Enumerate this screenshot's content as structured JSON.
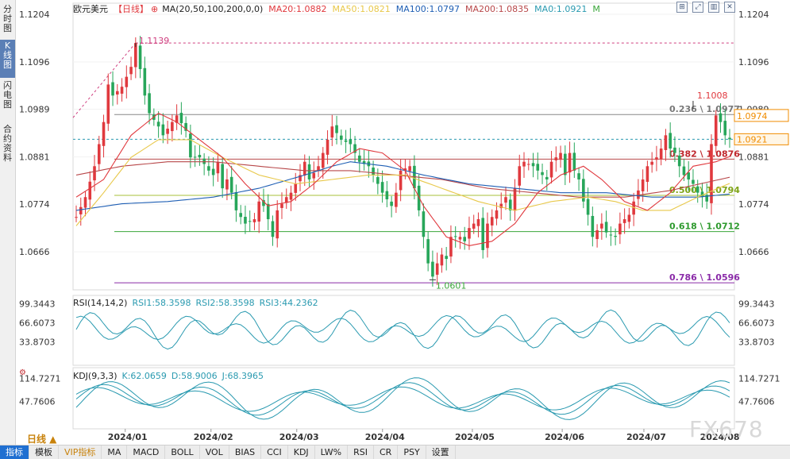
{
  "side_tabs": [
    {
      "label": "分时图",
      "active": false
    },
    {
      "label": "K线图",
      "active": true
    },
    {
      "label": "闪电图",
      "active": false
    },
    {
      "label": "合约资料",
      "active": false
    }
  ],
  "main_legend": {
    "symbol": "欧元美元",
    "period_tag": "【日线】",
    "ma_params": "MA(20,50,100,200,0,0)",
    "ma20": "MA20:1.0882",
    "ma50": "MA50:1.0821",
    "ma100": "MA100:1.0797",
    "ma200": "MA200:1.0835",
    "ma0": "MA0:1.0921",
    "m_label": "M"
  },
  "rsi_legend": {
    "name": "RSI(14,14,2)",
    "rsi1": "RSI1:58.3598",
    "rsi2": "RSI2:58.3598",
    "rsi3": "RSI3:44.2362"
  },
  "kdj_legend": {
    "name": "KDJ(9,3,3)",
    "k": "K:62.0659",
    "d": "D:58.9006",
    "j": "J:68.3965"
  },
  "colors": {
    "up": "#e0393e",
    "down": "#27a65a",
    "ma20": "#e0393e",
    "ma50": "#e8c84a",
    "ma100": "#1f5fb4",
    "ma200": "#b8484a",
    "fib_gray": "#888888",
    "fib_green": "#3aa63a",
    "fib_lime": "#a8c23a",
    "fib_purple": "#8a2aa8",
    "rsi": "#2a9ab0",
    "kdj": "#2a9ab0",
    "accent_orange": "#f08c00"
  },
  "period_selector": "日线 ▲",
  "watermark": "FX678",
  "bottom_tabs": [
    {
      "label": "指标",
      "active": true,
      "vip": false
    },
    {
      "label": "模板",
      "active": false,
      "vip": false
    },
    {
      "label": "VIP指标",
      "active": false,
      "vip": true
    },
    {
      "label": "MA",
      "active": false,
      "vip": false
    },
    {
      "label": "MACD",
      "active": false,
      "vip": false
    },
    {
      "label": "BOLL",
      "active": false,
      "vip": false
    },
    {
      "label": "VOL",
      "active": false,
      "vip": false
    },
    {
      "label": "BIAS",
      "active": false,
      "vip": false
    },
    {
      "label": "CCI",
      "active": false,
      "vip": false
    },
    {
      "label": "KDJ",
      "active": false,
      "vip": false
    },
    {
      "label": "LW%",
      "active": false,
      "vip": false
    },
    {
      "label": "RSI",
      "active": false,
      "vip": false
    },
    {
      "label": "CR",
      "active": false,
      "vip": false
    },
    {
      "label": "PSY",
      "active": false,
      "vip": false
    },
    {
      "label": "设置",
      "active": false,
      "vip": false
    }
  ],
  "chart_data": {
    "type": "candlestick",
    "symbol": "欧元美元",
    "period": "日线",
    "y_ticks": [
      "1.1204",
      "1.1096",
      "1.0989",
      "1.0881",
      "1.0774",
      "1.0666"
    ],
    "ylim": [
      1.058,
      1.1204
    ],
    "x_ticks": [
      "2024/01",
      "2024/02",
      "2024/03",
      "2024/04",
      "2024/05",
      "2024/06",
      "2024/07",
      "2024/08"
    ],
    "price_tags": [
      {
        "label": "1.0974",
        "value": 1.0974,
        "style": "outline"
      },
      {
        "label": "1.0921",
        "value": 1.0921,
        "style": "filled"
      }
    ],
    "annotations": [
      {
        "text": "1.1139",
        "value": 1.1139
      },
      {
        "text": "1.1008",
        "value": 1.1008
      },
      {
        "text": "1.0601",
        "value": 1.0601
      }
    ],
    "fibonacci": [
      {
        "label": "0.236 \\ 1.0977",
        "value": 1.0977
      },
      {
        "label": "0.382 \\ 1.0876",
        "value": 1.0876
      },
      {
        "label": "0.500 \\ 1.0794",
        "value": 1.0794
      },
      {
        "label": "0.618 \\ 1.0712",
        "value": 1.0712
      },
      {
        "label": "0.786 \\ 1.0596",
        "value": 1.0596
      }
    ],
    "price_path": [
      [
        0,
        1.0745
      ],
      [
        2,
        1.079
      ],
      [
        4,
        1.086
      ],
      [
        6,
        1.096
      ],
      [
        7,
        1.1045
      ],
      [
        8,
        1.102
      ],
      [
        10,
        1.104
      ],
      [
        12,
        1.1085
      ],
      [
        13,
        1.1139
      ],
      [
        14,
        1.108
      ],
      [
        15,
        1.102
      ],
      [
        16,
        1.098
      ],
      [
        18,
        1.095
      ],
      [
        19,
        1.093
      ],
      [
        21,
        1.096
      ],
      [
        22,
        1.0975
      ],
      [
        24,
        1.094
      ],
      [
        25,
        1.088
      ],
      [
        27,
        1.088
      ],
      [
        29,
        1.085
      ],
      [
        30,
        1.084
      ],
      [
        31,
        1.087
      ],
      [
        32,
        1.081
      ],
      [
        33,
        1.083
      ],
      [
        34,
        1.08
      ],
      [
        35,
        1.076
      ],
      [
        37,
        1.073
      ],
      [
        39,
        1.074
      ],
      [
        40,
        1.078
      ],
      [
        41,
        1.077
      ],
      [
        42,
        1.074
      ],
      [
        43,
        1.07
      ],
      [
        44,
        1.076
      ],
      [
        46,
        1.079
      ],
      [
        47,
        1.08
      ],
      [
        49,
        1.084
      ],
      [
        50,
        1.087
      ],
      [
        51,
        1.083
      ],
      [
        53,
        1.086
      ],
      [
        55,
        1.092
      ],
      [
        56,
        1.095
      ],
      [
        58,
        1.092
      ],
      [
        60,
        1.091
      ],
      [
        61,
        1.089
      ],
      [
        62,
        1.087
      ],
      [
        64,
        1.086
      ],
      [
        65,
        1.084
      ],
      [
        67,
        1.08
      ],
      [
        69,
        1.077
      ],
      [
        70,
        1.08
      ],
      [
        71,
        1.085
      ],
      [
        73,
        1.086
      ],
      [
        75,
        1.076
      ],
      [
        76,
        1.07
      ],
      [
        77,
        1.064
      ],
      [
        78,
        1.061
      ],
      [
        79,
        1.064
      ],
      [
        80,
        1.066
      ],
      [
        81,
        1.065
      ],
      [
        82,
        1.07
      ],
      [
        84,
        1.07
      ],
      [
        85,
        1.069
      ],
      [
        86,
        1.072
      ],
      [
        88,
        1.074
      ],
      [
        89,
        1.067
      ],
      [
        90,
        1.073
      ],
      [
        92,
        1.076
      ],
      [
        94,
        1.079
      ],
      [
        95,
        1.076
      ],
      [
        96,
        1.081
      ],
      [
        97,
        1.086
      ],
      [
        98,
        1.087
      ],
      [
        100,
        1.086
      ],
      [
        101,
        1.085
      ],
      [
        103,
        1.083
      ],
      [
        104,
        1.087
      ],
      [
        106,
        1.089
      ],
      [
        107,
        1.084
      ],
      [
        108,
        1.089
      ],
      [
        109,
        1.085
      ],
      [
        110,
        1.083
      ],
      [
        111,
        1.078
      ],
      [
        112,
        1.075
      ],
      [
        113,
        1.07
      ],
      [
        115,
        1.073
      ],
      [
        116,
        1.071
      ],
      [
        118,
        1.07
      ],
      [
        119,
        1.073
      ],
      [
        121,
        1.075
      ],
      [
        122,
        1.078
      ],
      [
        124,
        1.083
      ],
      [
        125,
        1.086
      ],
      [
        127,
        1.088
      ],
      [
        128,
        1.09
      ],
      [
        129,
        1.093
      ],
      [
        130,
        1.09
      ],
      [
        131,
        1.089
      ],
      [
        132,
        1.086
      ],
      [
        133,
        1.084
      ],
      [
        134,
        1.083
      ],
      [
        135,
        1.082
      ],
      [
        136,
        1.08
      ],
      [
        137,
        1.079
      ],
      [
        138,
        1.078
      ],
      [
        139,
        1.091
      ],
      [
        140,
        1.0975
      ],
      [
        141,
        1.096
      ],
      [
        142,
        1.093
      ],
      [
        143,
        1.0921
      ]
    ],
    "ma20_path": [
      [
        0,
        1.079
      ],
      [
        6,
        1.083
      ],
      [
        12,
        1.093
      ],
      [
        18,
        1.098
      ],
      [
        22,
        1.096
      ],
      [
        27,
        1.092
      ],
      [
        32,
        1.088
      ],
      [
        37,
        1.082
      ],
      [
        42,
        1.077
      ],
      [
        47,
        1.078
      ],
      [
        52,
        1.082
      ],
      [
        57,
        1.087
      ],
      [
        62,
        1.09
      ],
      [
        67,
        1.089
      ],
      [
        72,
        1.085
      ],
      [
        76,
        1.077
      ],
      [
        81,
        1.07
      ],
      [
        86,
        1.068
      ],
      [
        91,
        1.069
      ],
      [
        96,
        1.073
      ],
      [
        101,
        1.08
      ],
      [
        106,
        1.084
      ],
      [
        111,
        1.086
      ],
      [
        115,
        1.083
      ],
      [
        120,
        1.078
      ],
      [
        125,
        1.076
      ],
      [
        130,
        1.08
      ],
      [
        135,
        1.086
      ],
      [
        140,
        1.087
      ],
      [
        143,
        1.0882
      ]
    ],
    "ma50_path": [
      [
        0,
        1.0725
      ],
      [
        6,
        1.08
      ],
      [
        12,
        1.088
      ],
      [
        18,
        1.092
      ],
      [
        25,
        1.092
      ],
      [
        32,
        1.088
      ],
      [
        40,
        1.084
      ],
      [
        48,
        1.082
      ],
      [
        56,
        1.083
      ],
      [
        64,
        1.084
      ],
      [
        72,
        1.084
      ],
      [
        80,
        1.081
      ],
      [
        88,
        1.078
      ],
      [
        96,
        1.076
      ],
      [
        104,
        1.078
      ],
      [
        112,
        1.079
      ],
      [
        118,
        1.078
      ],
      [
        124,
        1.076
      ],
      [
        130,
        1.076
      ],
      [
        136,
        1.079
      ],
      [
        143,
        1.0821
      ]
    ],
    "ma100_path": [
      [
        0,
        1.076
      ],
      [
        10,
        1.0775
      ],
      [
        20,
        1.078
      ],
      [
        30,
        1.079
      ],
      [
        40,
        1.081
      ],
      [
        50,
        1.084
      ],
      [
        56,
        1.086
      ],
      [
        60,
        1.087
      ],
      [
        68,
        1.086
      ],
      [
        76,
        1.084
      ],
      [
        86,
        1.082
      ],
      [
        96,
        1.081
      ],
      [
        106,
        1.08
      ],
      [
        116,
        1.08
      ],
      [
        126,
        1.079
      ],
      [
        136,
        1.079
      ],
      [
        143,
        1.0797
      ]
    ],
    "ma200_path": [
      [
        0,
        1.084
      ],
      [
        10,
        1.086
      ],
      [
        20,
        1.087
      ],
      [
        30,
        1.087
      ],
      [
        40,
        1.086
      ],
      [
        50,
        1.085
      ],
      [
        60,
        1.085
      ],
      [
        70,
        1.084
      ],
      [
        80,
        1.083
      ],
      [
        90,
        1.081
      ],
      [
        100,
        1.08
      ],
      [
        110,
        1.079
      ],
      [
        120,
        1.079
      ],
      [
        130,
        1.0805
      ],
      [
        143,
        1.0835
      ]
    ],
    "rsi": {
      "ticks": [
        "99.3443",
        "66.6073",
        "33.8703"
      ],
      "ylim": [
        0,
        100
      ],
      "rsi1_last": 58.3598,
      "rsi2_last": 58.3598,
      "rsi3_last": 44.2362
    },
    "kdj": {
      "ticks": [
        "114.7271",
        "47.7606"
      ],
      "ylim": [
        -20,
        130
      ],
      "k_last": 62.0659,
      "d_last": 58.9006,
      "j_last": 68.3965
    }
  }
}
